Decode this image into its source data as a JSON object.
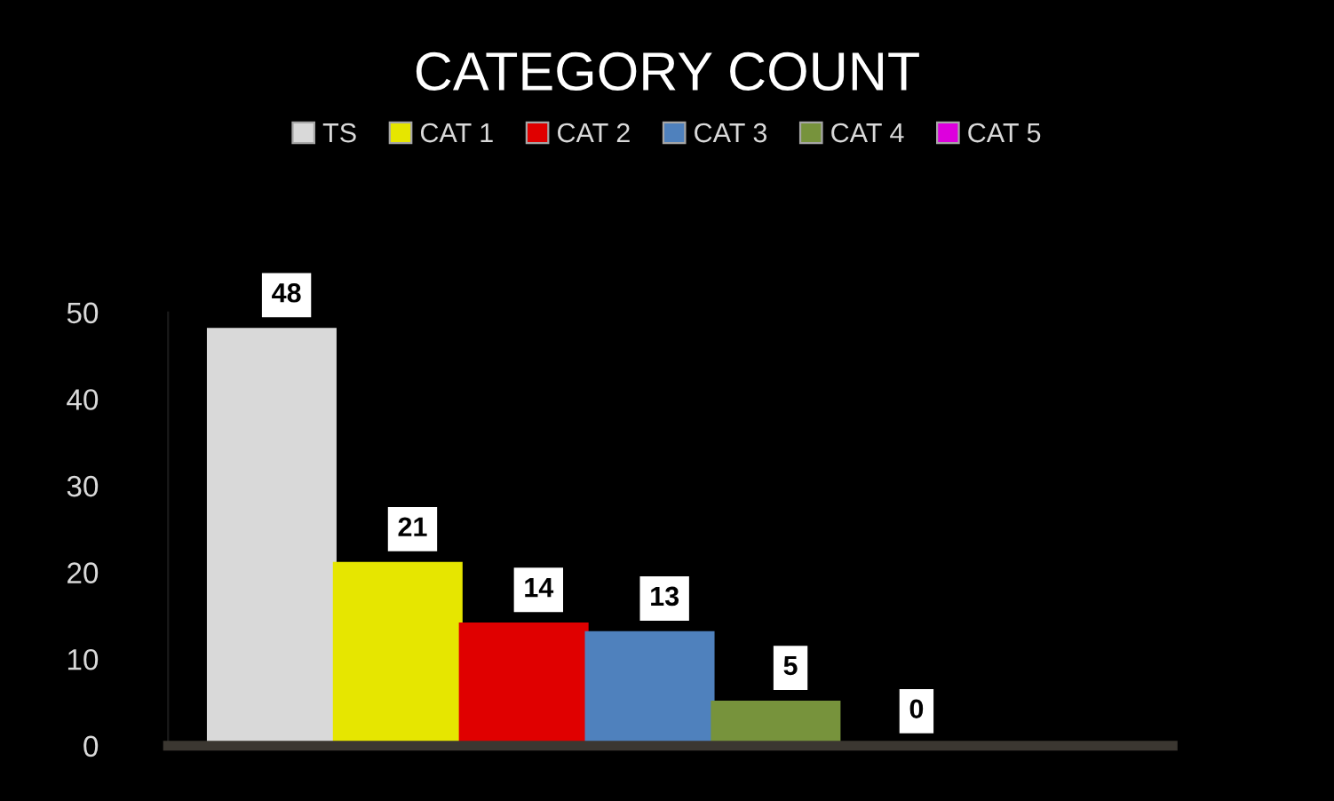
{
  "chart_data": {
    "type": "bar",
    "title": "CATEGORY COUNT",
    "categories": [
      null
    ],
    "series": [
      {
        "name": "TS",
        "color": "#d9d9d9",
        "values": [
          48
        ]
      },
      {
        "name": "CAT 1",
        "color": "#e6e600",
        "values": [
          21
        ]
      },
      {
        "name": "CAT 2",
        "color": "#e00000",
        "values": [
          14
        ]
      },
      {
        "name": "CAT 3",
        "color": "#4f81bd",
        "values": [
          13
        ]
      },
      {
        "name": "CAT 4",
        "color": "#77933c",
        "values": [
          5
        ]
      },
      {
        "name": "CAT 5",
        "color": "#dd00dd",
        "values": [
          0
        ]
      }
    ],
    "ylim": [
      0,
      50
    ],
    "yticks": [
      0,
      10,
      20,
      30,
      40,
      50
    ],
    "grid": false,
    "legend": "top",
    "data_labels": true
  }
}
